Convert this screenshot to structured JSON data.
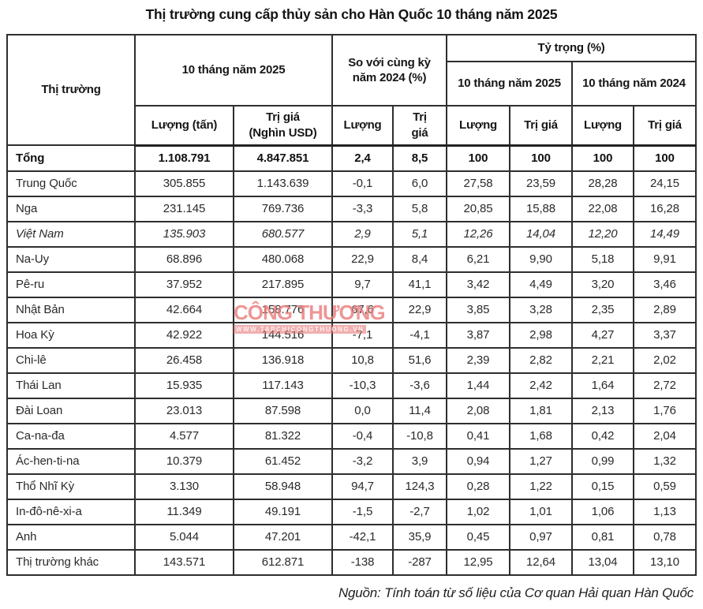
{
  "title": "Thị trường cung cấp thủy sản cho Hàn Quốc 10 tháng năm 2025",
  "source": "Nguồn: Tính toán từ số liệu của Cơ quan Hải quan Hàn Quốc",
  "watermark": {
    "text": "CÔNG THƯƠNG",
    "url": "WWW.TAPCHICONGTHUONG.VN",
    "color": "#e03e3e"
  },
  "chart_data": {
    "type": "table",
    "title": "Thị trường cung cấp thủy sản cho Hàn Quốc 10 tháng năm 2025",
    "header": {
      "market": "Thị trường",
      "group_2025": "10 tháng năm 2025",
      "group_vs_2024": "So với cùng kỳ năm 2024 (%)",
      "group_share": "Tỷ trọng (%)",
      "share_2025": "10 tháng năm 2025",
      "share_2024": "10 tháng năm 2024",
      "sub": [
        "Lượng (tấn)",
        "Trị giá\n(Nghìn USD)",
        "Lượng",
        "Trị\ngiá",
        "Lượng",
        "Trị giá",
        "Lượng",
        "Trị giá"
      ]
    },
    "rows": [
      {
        "name": "Tổng",
        "style": "bold",
        "values": [
          "1.108.791",
          "4.847.851",
          "2,4",
          "8,5",
          "100",
          "100",
          "100",
          "100"
        ]
      },
      {
        "name": "Trung Quốc",
        "style": "",
        "values": [
          "305.855",
          "1.143.639",
          "-0,1",
          "6,0",
          "27,58",
          "23,59",
          "28,28",
          "24,15"
        ]
      },
      {
        "name": "Nga",
        "style": "",
        "values": [
          "231.145",
          "769.736",
          "-3,3",
          "5,8",
          "20,85",
          "15,88",
          "22,08",
          "16,28"
        ]
      },
      {
        "name": "Việt Nam",
        "style": "italic",
        "values": [
          "135.903",
          "680.577",
          "2,9",
          "5,1",
          "12,26",
          "14,04",
          "12,20",
          "14,49"
        ]
      },
      {
        "name": "Na-Uy",
        "style": "",
        "values": [
          "68.896",
          "480.068",
          "22,9",
          "8,4",
          "6,21",
          "9,90",
          "5,18",
          "9,91"
        ]
      },
      {
        "name": "Pê-ru",
        "style": "",
        "values": [
          "37.952",
          "217.895",
          "9,7",
          "41,1",
          "3,42",
          "4,49",
          "3,20",
          "3,46"
        ]
      },
      {
        "name": "Nhật Bản",
        "style": "",
        "values": [
          "42.664",
          "158.776",
          "67,6",
          "22,9",
          "3,85",
          "3,28",
          "2,35",
          "2,89"
        ]
      },
      {
        "name": "Hoa Kỳ",
        "style": "",
        "values": [
          "42.922",
          "144.516",
          "-7,1",
          "-4,1",
          "3,87",
          "2,98",
          "4,27",
          "3,37"
        ]
      },
      {
        "name": "Chi-lê",
        "style": "",
        "values": [
          "26.458",
          "136.918",
          "10,8",
          "51,6",
          "2,39",
          "2,82",
          "2,21",
          "2,02"
        ]
      },
      {
        "name": "Thái Lan",
        "style": "",
        "values": [
          "15.935",
          "117.143",
          "-10,3",
          "-3,6",
          "1,44",
          "2,42",
          "1,64",
          "2,72"
        ]
      },
      {
        "name": "Đài Loan",
        "style": "",
        "values": [
          "23.013",
          "87.598",
          "0,0",
          "11,4",
          "2,08",
          "1,81",
          "2,13",
          "1,76"
        ]
      },
      {
        "name": "Ca-na-đa",
        "style": "",
        "values": [
          "4.577",
          "81.322",
          "-0,4",
          "-10,8",
          "0,41",
          "1,68",
          "0,42",
          "2,04"
        ]
      },
      {
        "name": "Ác-hen-ti-na",
        "style": "",
        "values": [
          "10.379",
          "61.452",
          "-3,2",
          "3,9",
          "0,94",
          "1,27",
          "0,99",
          "1,32"
        ]
      },
      {
        "name": "Thổ Nhĩ Kỳ",
        "style": "",
        "values": [
          "3.130",
          "58.948",
          "94,7",
          "124,3",
          "0,28",
          "1,22",
          "0,15",
          "0,59"
        ]
      },
      {
        "name": "In-đô-nê-xi-a",
        "style": "",
        "values": [
          "11.349",
          "49.191",
          "-1,5",
          "-2,7",
          "1,02",
          "1,01",
          "1,06",
          "1,13"
        ]
      },
      {
        "name": "Anh",
        "style": "",
        "values": [
          "5.044",
          "47.201",
          "-42,1",
          "35,9",
          "0,45",
          "0,97",
          "0,81",
          "0,78"
        ]
      },
      {
        "name": "Thị trường khác",
        "style": "",
        "values": [
          "143.571",
          "612.871",
          "-138",
          "-287",
          "12,95",
          "12,64",
          "13,04",
          "13,10"
        ]
      }
    ]
  }
}
